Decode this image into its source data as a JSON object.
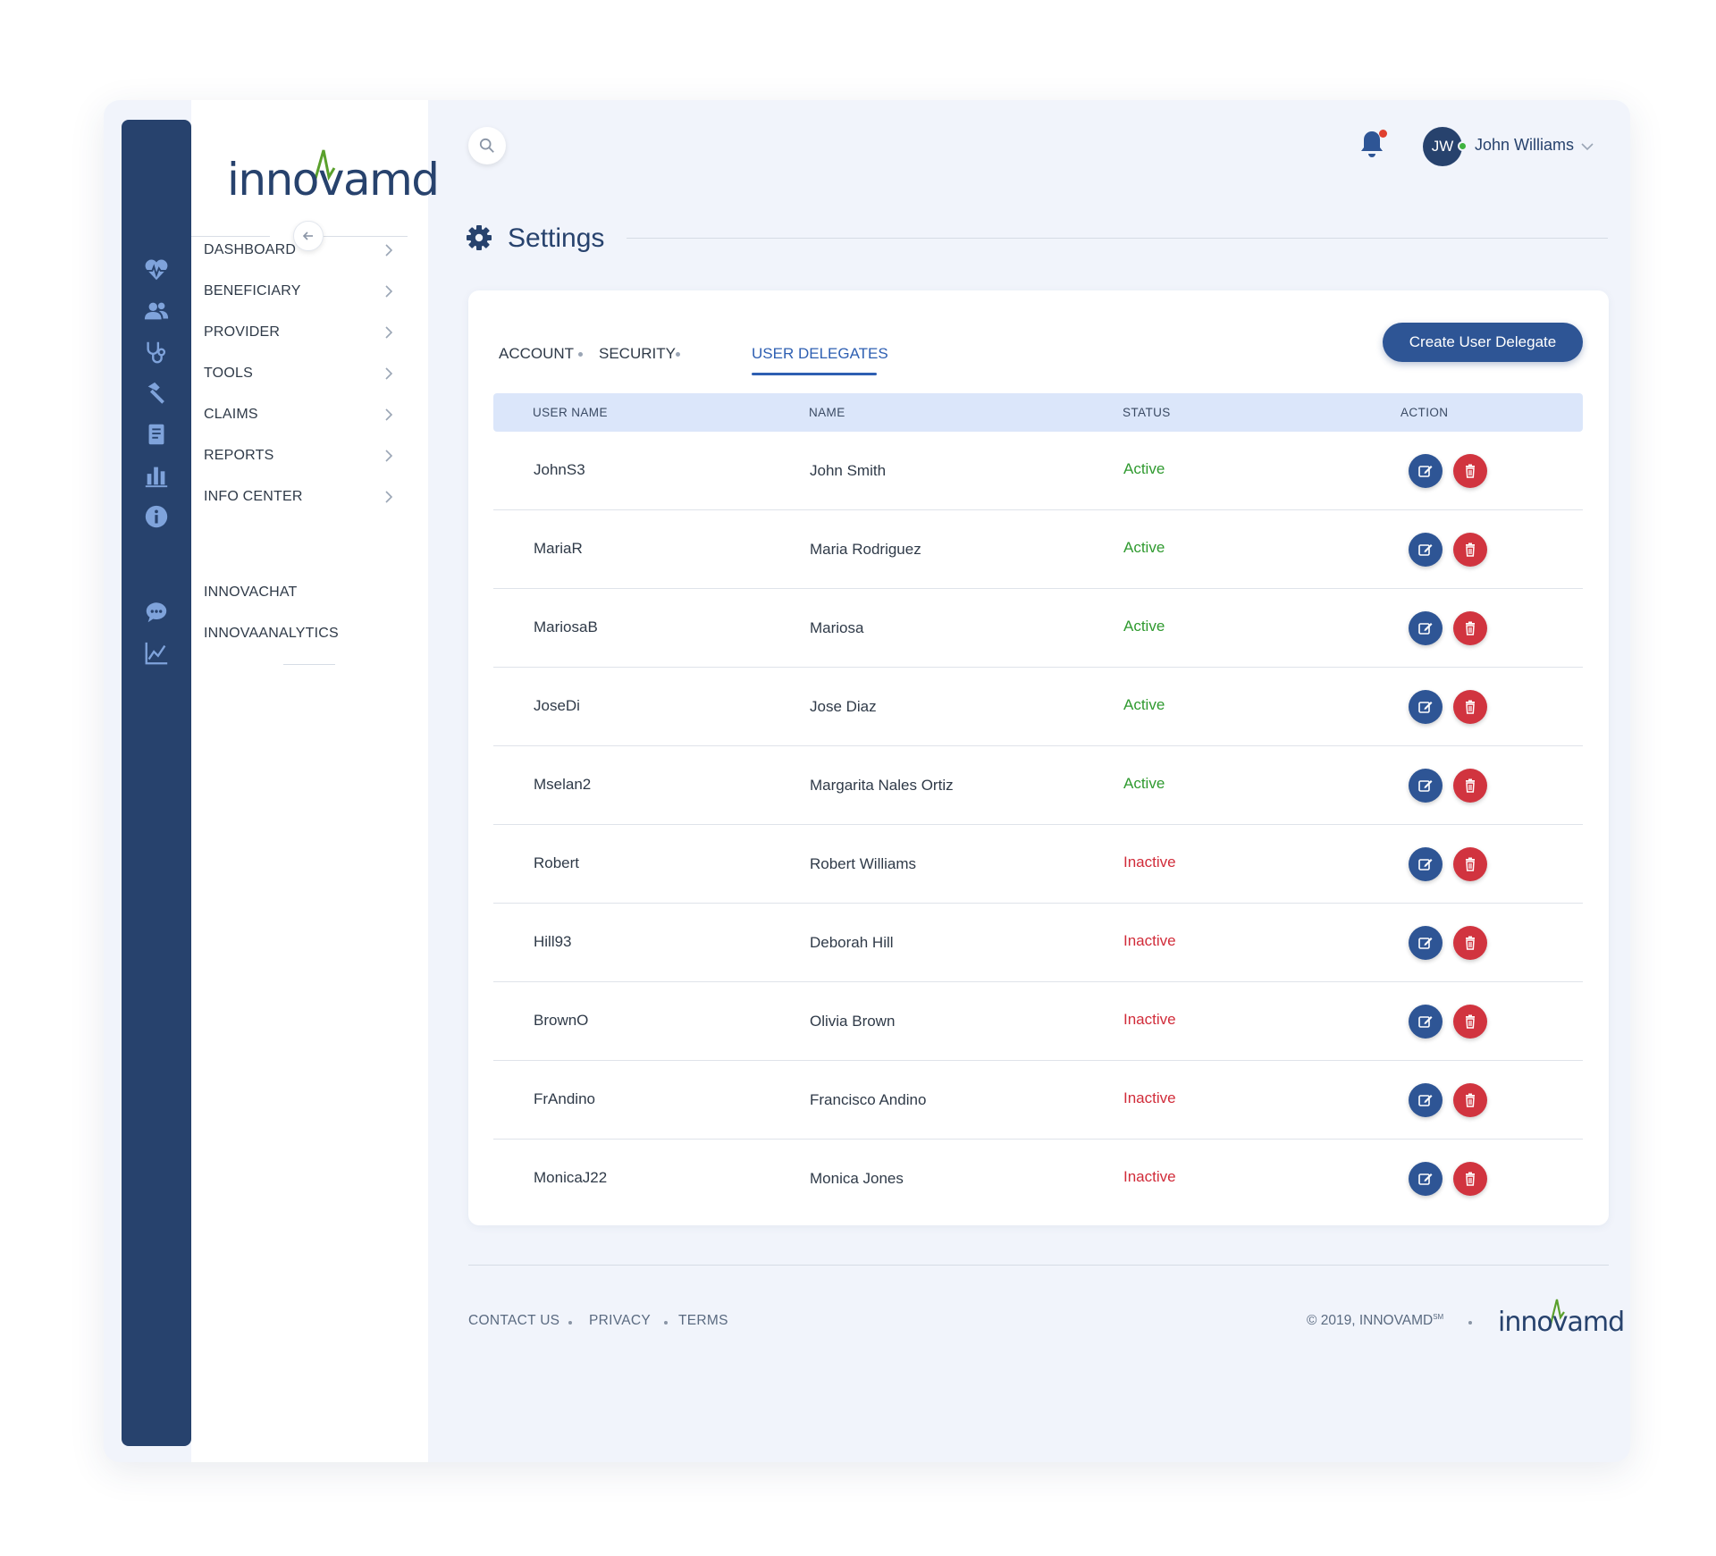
{
  "brand": {
    "logo_text": "innovamd",
    "footer_logo_text": "innovamd"
  },
  "nav": {
    "items": [
      {
        "label": "DASHBOARD",
        "icon": "heart-pulse-icon"
      },
      {
        "label": "BENEFICIARY",
        "icon": "users-icon"
      },
      {
        "label": "PROVIDER",
        "icon": "stethoscope-icon"
      },
      {
        "label": "TOOLS",
        "icon": "hammer-icon"
      },
      {
        "label": "CLAIMS",
        "icon": "document-icon"
      },
      {
        "label": "REPORTS",
        "icon": "bar-chart-icon"
      },
      {
        "label": "INFO CENTER",
        "icon": "info-icon"
      }
    ],
    "extra_items": [
      {
        "label": "INNOVACHAT",
        "icon": "chat-icon"
      },
      {
        "label": "INNOVAANALYTICS",
        "icon": "line-chart-icon"
      }
    ]
  },
  "header": {
    "user_initials": "JW",
    "user_name": "John Williams"
  },
  "page": {
    "title": "Settings"
  },
  "tabs": [
    {
      "label": "ACCOUNT",
      "active": false
    },
    {
      "label": "SECURITY",
      "active": false
    },
    {
      "label": "USER DELEGATES",
      "active": true
    }
  ],
  "create_button_label": "Create User Delegate",
  "table": {
    "columns": [
      "USER NAME",
      "NAME",
      "STATUS",
      "ACTION"
    ],
    "rows": [
      {
        "username": "JohnS3",
        "name": "John Smith",
        "status": "Active"
      },
      {
        "username": "MariaR",
        "name": "Maria Rodriguez",
        "status": "Active"
      },
      {
        "username": "MariosaB",
        "name": "Mariosa",
        "status": "Active"
      },
      {
        "username": "JoseDi",
        "name": "Jose Diaz",
        "status": "Active"
      },
      {
        "username": "Mselan2",
        "name": "Margarita Nales Ortiz",
        "status": "Active"
      },
      {
        "username": "Robert",
        "name": "Robert Williams",
        "status": "Inactive"
      },
      {
        "username": "Hill93",
        "name": "Deborah Hill",
        "status": "Inactive"
      },
      {
        "username": "BrownO",
        "name": "Olivia Brown",
        "status": "Inactive"
      },
      {
        "username": "FrAndino",
        "name": "Francisco Andino",
        "status": "Inactive"
      },
      {
        "username": "MonicaJ22",
        "name": "Monica Jones",
        "status": "Inactive"
      }
    ]
  },
  "footer": {
    "links": [
      "CONTACT US",
      "PRIVACY",
      "TERMS"
    ],
    "copyright": "© 2019, INNOVAMD",
    "copyright_mark": "SM"
  },
  "colors": {
    "rail": "#27426d",
    "accent": "#2e5595",
    "active_status": "#2f9a2f",
    "inactive_status": "#d12c3a",
    "logo_green": "#5aa02c"
  }
}
